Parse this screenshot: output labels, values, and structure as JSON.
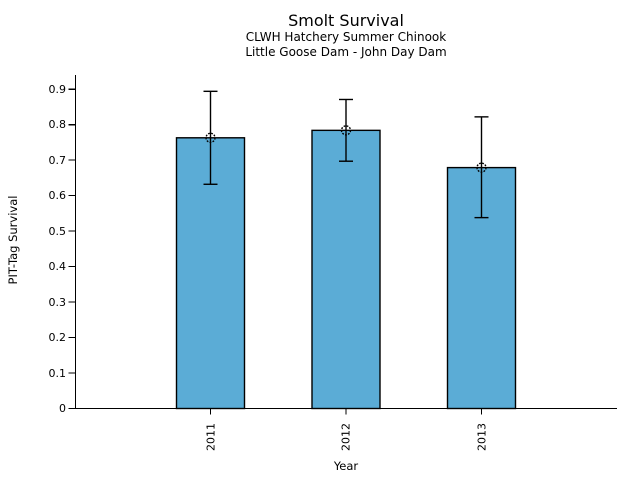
{
  "figure": {
    "background": "#ffffff"
  },
  "chart_data": {
    "type": "bar",
    "title": "Smolt Survival",
    "subtitle_line1": "CLWH Hatchery Summer Chinook",
    "subtitle_line2": "Little Goose Dam - John Day Dam",
    "xlabel": "Year",
    "ylabel": "PIT-Tag Survival",
    "categories": [
      "2011",
      "2012",
      "2013"
    ],
    "series": [
      {
        "name": "PIT-Tag Survival",
        "values": [
          0.763,
          0.784,
          0.679
        ],
        "error_low": [
          0.632,
          0.697,
          0.538
        ],
        "error_high": [
          0.894,
          0.871,
          0.822
        ]
      }
    ],
    "y_ticks": [
      "0",
      "0.1",
      "0.2",
      "0.3",
      "0.4",
      "0.5",
      "0.6",
      "0.7",
      "0.8",
      "0.9"
    ],
    "y_tick_values": [
      0,
      0.1,
      0.2,
      0.3,
      0.4,
      0.5,
      0.6,
      0.7,
      0.8,
      0.9
    ],
    "ylim": [
      0,
      0.94
    ],
    "grid": false,
    "legend": false,
    "x_tick_rotation_deg": 90,
    "marker": "open-circle-dotted",
    "colors": {
      "bar_fill": "#5BACD6",
      "bar_edge": "#000000",
      "error_bar": "#000000",
      "axis": "#000000",
      "text": "#000000"
    }
  }
}
